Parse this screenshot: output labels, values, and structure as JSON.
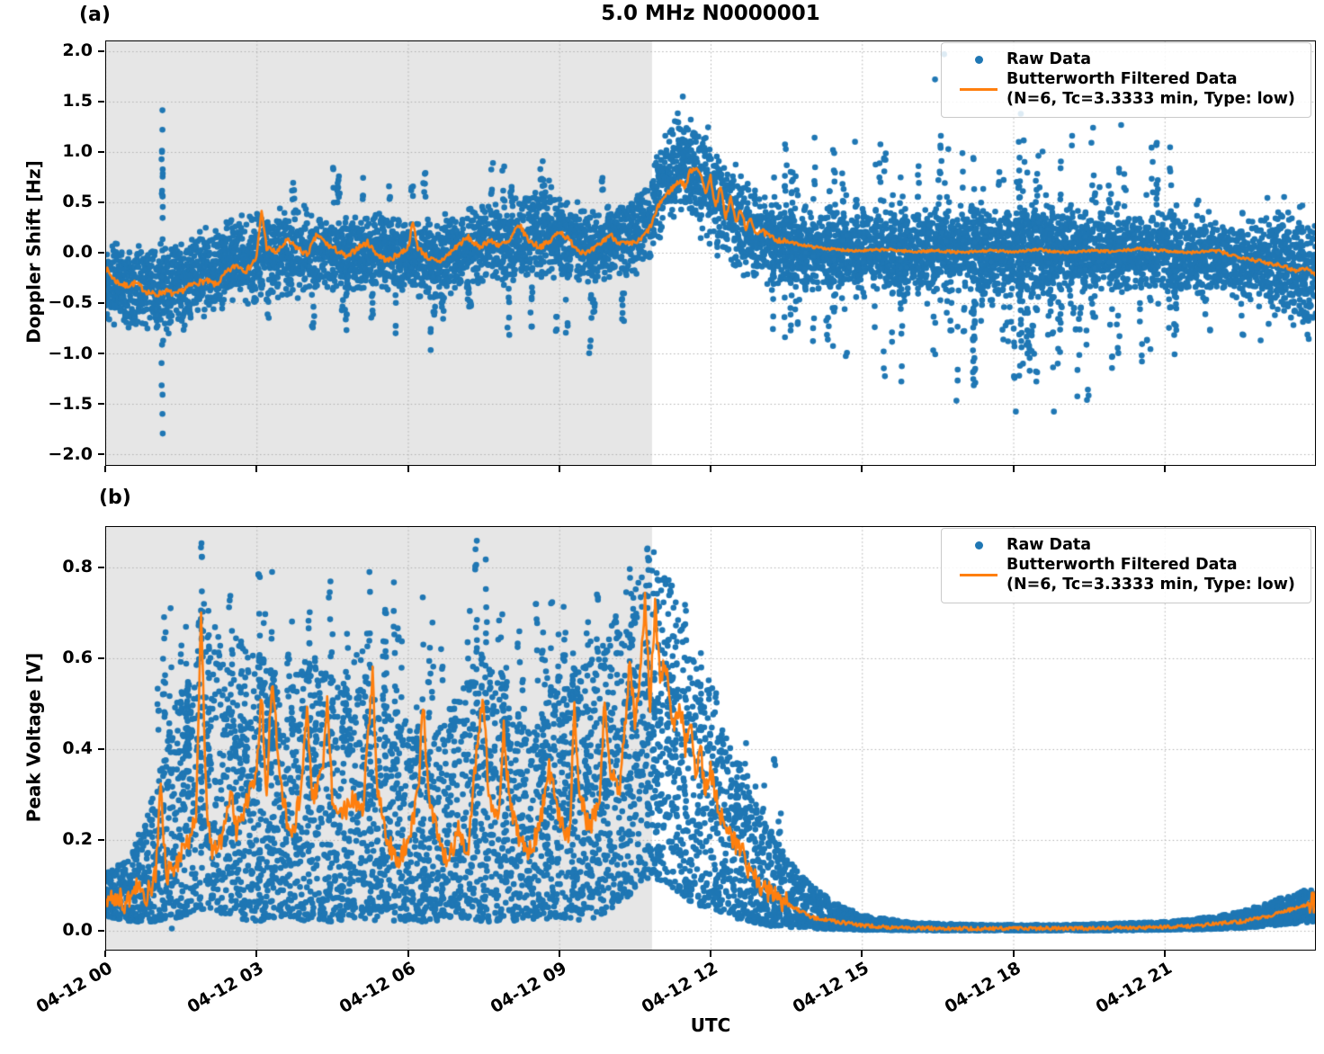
{
  "figure": {
    "title": "5.0 MHz N0000001",
    "xlabel": "UTC",
    "panel_a_tag": "(a)",
    "panel_b_tag": "(b)",
    "legend": {
      "raw_label": "Raw Data",
      "filtered_label_line1": "Butterworth Filtered Data",
      "filtered_label_line2": "(N=6, Tc=3.3333 min, Type: low)"
    },
    "colors": {
      "raw_scatter": "#1f77b4",
      "filtered_line": "#ff7f0e",
      "shaded_region": "#e6e6e6",
      "grid": "#b0b0b0",
      "axis": "#000000"
    }
  },
  "chart_data": [
    {
      "type": "scatter",
      "panel": "a",
      "ylabel": "Doppler Shift [Hz]",
      "ylim": [
        -2.116,
        2.107
      ],
      "yticks": [
        2.0,
        1.5,
        1.0,
        0.5,
        0.0,
        -0.5,
        -1.0,
        -1.5,
        -2.0
      ],
      "ytick_labels": [
        "2.0",
        "1.5",
        "1.0",
        "0.5",
        "0.0",
        "−0.5",
        "−1.0",
        "−1.5",
        "−2.0"
      ],
      "x_range_hours": [
        0,
        24
      ],
      "xticks_hours": [
        0,
        3,
        6,
        9,
        12,
        15,
        18,
        21
      ],
      "xtick_labels": [
        "04-12 00",
        "04-12 03",
        "04-12 06",
        "04-12 09",
        "04-12 12",
        "04-12 15",
        "04-12 18",
        "04-12 21"
      ],
      "shade_hours": [
        0,
        10.84
      ],
      "grid": "dotted",
      "legend_entries": [
        "Raw Data",
        "Butterworth Filtered Data (N=6, Tc=3.3333 min, Type: low)"
      ],
      "raw_band": {
        "t": [
          0,
          0.5,
          1,
          1.5,
          2,
          2.5,
          3,
          3.5,
          4,
          4.5,
          5,
          5.5,
          6,
          6.5,
          7,
          7.5,
          8,
          8.5,
          9,
          9.5,
          10,
          10.5,
          10.8,
          11.1,
          11.4,
          11.7,
          12,
          12.3,
          12.6,
          13,
          13.5,
          14,
          15,
          16,
          17,
          18,
          19,
          20,
          21,
          22,
          23,
          23.5,
          24
        ],
        "lo": [
          -0.75,
          -0.8,
          -0.85,
          -0.8,
          -0.7,
          -0.55,
          -0.5,
          -0.5,
          -0.45,
          -0.4,
          -0.45,
          -0.4,
          -0.45,
          -0.5,
          -0.4,
          -0.35,
          -0.35,
          -0.3,
          -0.3,
          -0.35,
          -0.3,
          -0.25,
          -0.1,
          0.2,
          0.3,
          0.2,
          0.0,
          -0.15,
          -0.25,
          -0.3,
          -0.35,
          -0.4,
          -0.4,
          -0.4,
          -0.45,
          -0.45,
          -0.4,
          -0.4,
          -0.4,
          -0.45,
          -0.55,
          -0.7,
          -0.95
        ],
        "hi": [
          0.2,
          0.15,
          0.15,
          0.2,
          0.3,
          0.35,
          0.45,
          0.45,
          0.5,
          0.45,
          0.4,
          0.45,
          0.4,
          0.35,
          0.45,
          0.5,
          0.55,
          0.65,
          0.6,
          0.5,
          0.5,
          0.55,
          0.8,
          1.25,
          1.45,
          1.35,
          1.25,
          1.05,
          0.8,
          0.6,
          0.5,
          0.45,
          0.4,
          0.45,
          0.5,
          0.5,
          0.45,
          0.45,
          0.4,
          0.35,
          0.35,
          0.4,
          0.45
        ]
      },
      "raw_spikes": [
        [
          1.13,
          -1.85,
          1.45,
          26
        ]
      ],
      "raw_bursts": [
        {
          "t0": 0.15,
          "t1": 10.6,
          "count": 26,
          "lo": [
            -1.05,
            -0.55
          ],
          "hi": [
            -0.5,
            -0.25
          ],
          "n": [
            3,
            8
          ]
        },
        {
          "t0": 3.0,
          "t1": 10.7,
          "count": 16,
          "lo": [
            0.45,
            0.55
          ],
          "hi": [
            0.6,
            0.95
          ],
          "n": [
            3,
            7
          ]
        },
        {
          "t0": 13.2,
          "t1": 21.3,
          "count": 95,
          "lo": [
            -1.35,
            -0.3
          ],
          "hi": [
            0.3,
            1.3
          ],
          "n": [
            4,
            13
          ]
        },
        {
          "t0": 16.8,
          "t1": 19.5,
          "count": 12,
          "lo": [
            -1.6,
            -1.2
          ],
          "hi": [
            -0.6,
            -0.3
          ],
          "n": [
            3,
            7
          ]
        },
        {
          "t0": 21.3,
          "t1": 23.9,
          "count": 20,
          "lo": [
            -1.0,
            -0.5
          ],
          "hi": [
            0.3,
            0.7
          ],
          "n": [
            3,
            7
          ]
        }
      ],
      "extra_points": [
        [
          16.63,
          1.97
        ],
        [
          16.45,
          1.72
        ],
        [
          11.45,
          1.55
        ],
        [
          18.15,
          1.38
        ]
      ],
      "filtered": {
        "t": [
          0,
          0.2,
          0.4,
          0.6,
          0.8,
          1.0,
          1.2,
          1.4,
          1.6,
          1.8,
          2.0,
          2.2,
          2.4,
          2.6,
          2.8,
          3.0,
          3.1,
          3.2,
          3.4,
          3.6,
          3.8,
          4.0,
          4.2,
          4.4,
          4.6,
          4.8,
          5.0,
          5.2,
          5.4,
          5.6,
          5.8,
          6.0,
          6.1,
          6.2,
          6.4,
          6.6,
          6.8,
          7.0,
          7.2,
          7.4,
          7.6,
          7.8,
          8.0,
          8.2,
          8.4,
          8.6,
          8.8,
          9.0,
          9.2,
          9.4,
          9.6,
          9.8,
          10.0,
          10.2,
          10.4,
          10.6,
          10.8,
          11.0,
          11.2,
          11.4,
          11.5,
          11.6,
          11.75,
          11.9,
          12.0,
          12.1,
          12.2,
          12.3,
          12.4,
          12.5,
          12.6,
          12.7,
          12.8,
          12.9,
          13.0,
          13.2,
          13.4,
          13.6,
          13.8,
          14.0,
          14.5,
          15.0,
          15.5,
          16.0,
          16.5,
          17.0,
          17.5,
          18.0,
          18.5,
          19.0,
          19.5,
          20.0,
          20.5,
          21.0,
          21.5,
          22.0,
          22.3,
          22.6,
          23.0,
          23.3,
          23.6,
          23.8,
          24.0
        ],
        "y": [
          -0.15,
          -0.28,
          -0.33,
          -0.3,
          -0.38,
          -0.42,
          -0.38,
          -0.42,
          -0.35,
          -0.3,
          -0.28,
          -0.32,
          -0.2,
          -0.12,
          -0.18,
          -0.05,
          0.42,
          0.05,
          0.0,
          0.12,
          0.05,
          -0.02,
          0.18,
          0.08,
          0.02,
          -0.05,
          0.05,
          0.1,
          -0.02,
          -0.08,
          -0.02,
          0.05,
          0.3,
          0.05,
          -0.05,
          -0.1,
          -0.02,
          0.08,
          0.15,
          0.05,
          0.12,
          0.08,
          0.1,
          0.28,
          0.12,
          0.06,
          0.1,
          0.22,
          0.12,
          0.02,
          0.0,
          0.08,
          0.18,
          0.1,
          0.08,
          0.12,
          0.25,
          0.5,
          0.62,
          0.72,
          0.65,
          0.82,
          0.85,
          0.6,
          0.75,
          0.45,
          0.65,
          0.35,
          0.55,
          0.3,
          0.42,
          0.25,
          0.32,
          0.2,
          0.22,
          0.15,
          0.12,
          0.1,
          0.08,
          0.06,
          0.03,
          0.02,
          0.03,
          0.01,
          0.02,
          0.0,
          0.02,
          0.01,
          0.03,
          0.0,
          0.02,
          0.01,
          0.04,
          0.02,
          0.0,
          0.02,
          -0.02,
          -0.05,
          -0.1,
          -0.12,
          -0.18,
          -0.15,
          -0.22
        ]
      }
    },
    {
      "type": "scatter",
      "panel": "b",
      "ylabel": "Peak Voltage [V]",
      "ylim": [
        -0.0436,
        0.891
      ],
      "yticks": [
        0.8,
        0.6,
        0.4,
        0.2,
        0.0
      ],
      "ytick_labels": [
        "0.8",
        "0.6",
        "0.4",
        "0.2",
        "0.0"
      ],
      "x_range_hours": [
        0,
        24
      ],
      "xticks_hours": [
        0,
        3,
        6,
        9,
        12,
        15,
        18,
        21
      ],
      "xtick_labels": [
        "04-12 00",
        "04-12 03",
        "04-12 06",
        "04-12 09",
        "04-12 12",
        "04-12 15",
        "04-12 18",
        "04-12 21"
      ],
      "shade_hours": [
        0,
        10.84
      ],
      "grid": "dotted",
      "legend_entries": [
        "Raw Data",
        "Butterworth Filtered Data (N=6, Tc=3.3333 min, Type: low)"
      ],
      "raw_band": {
        "t": [
          0,
          0.5,
          1,
          1.5,
          2,
          2.5,
          3,
          3.5,
          4,
          4.5,
          5,
          5.5,
          6,
          6.5,
          7,
          7.5,
          8,
          8.5,
          9,
          9.5,
          10,
          10.4,
          10.8,
          11.2,
          11.6,
          12,
          12.4,
          12.8,
          13.2,
          13.6,
          14,
          14.5,
          15,
          16,
          17,
          18,
          19,
          20,
          21,
          21.5,
          22,
          22.5,
          23,
          23.5,
          24
        ],
        "lo": [
          0.03,
          0.02,
          0.02,
          0.03,
          0.05,
          0.03,
          0.02,
          0.03,
          0.02,
          0.02,
          0.03,
          0.02,
          0.02,
          0.02,
          0.03,
          0.02,
          0.02,
          0.02,
          0.03,
          0.02,
          0.04,
          0.08,
          0.12,
          0.1,
          0.06,
          0.05,
          0.03,
          0.02,
          0.01,
          0.008,
          0.005,
          0.003,
          0.002,
          0.001,
          0.001,
          0.001,
          0.001,
          0.001,
          0.002,
          0.003,
          0.004,
          0.006,
          0.01,
          0.015,
          0.02
        ],
        "hi": [
          0.13,
          0.16,
          0.32,
          0.55,
          0.75,
          0.55,
          0.62,
          0.55,
          0.6,
          0.56,
          0.62,
          0.5,
          0.46,
          0.42,
          0.52,
          0.62,
          0.5,
          0.46,
          0.56,
          0.6,
          0.66,
          0.78,
          0.85,
          0.78,
          0.62,
          0.55,
          0.42,
          0.3,
          0.22,
          0.15,
          0.1,
          0.06,
          0.035,
          0.018,
          0.014,
          0.013,
          0.013,
          0.016,
          0.02,
          0.025,
          0.032,
          0.042,
          0.06,
          0.08,
          0.1
        ]
      },
      "raw_spikes": [
        [
          1.9,
          0.1,
          0.87,
          22
        ],
        [
          2.05,
          0.1,
          0.8,
          16
        ],
        [
          3.05,
          0.1,
          0.87,
          20
        ],
        [
          3.3,
          0.1,
          0.82,
          18
        ],
        [
          4.05,
          0.08,
          0.8,
          16
        ],
        [
          4.45,
          0.08,
          0.8,
          16
        ],
        [
          5.25,
          0.08,
          0.82,
          18
        ],
        [
          5.55,
          0.08,
          0.74,
          12
        ],
        [
          6.3,
          0.06,
          0.74,
          14
        ],
        [
          7.35,
          0.08,
          0.87,
          20
        ],
        [
          7.55,
          0.08,
          0.85,
          16
        ],
        [
          7.95,
          0.06,
          0.74,
          12
        ],
        [
          8.75,
          0.06,
          0.64,
          10
        ],
        [
          9.25,
          0.08,
          0.74,
          14
        ],
        [
          9.9,
          0.08,
          0.7,
          12
        ],
        [
          10.4,
          0.1,
          0.8,
          16
        ],
        [
          10.75,
          0.12,
          0.86,
          20
        ],
        [
          10.95,
          0.12,
          0.84,
          18
        ],
        [
          11.5,
          0.06,
          0.72,
          14
        ],
        [
          11.8,
          0.05,
          0.62,
          10
        ],
        [
          12.1,
          0.04,
          0.56,
          10
        ]
      ],
      "raw_bursts": [
        {
          "t0": 0.9,
          "t1": 11.4,
          "count": 90,
          "lo": [
            0.25,
            0.45
          ],
          "hi": [
            0.5,
            0.78
          ],
          "n": [
            4,
            10
          ]
        },
        {
          "t0": 12.2,
          "t1": 13.4,
          "count": 10,
          "lo": [
            0.1,
            0.2
          ],
          "hi": [
            0.25,
            0.45
          ],
          "n": [
            3,
            6
          ]
        }
      ],
      "extra_points": [
        [
          1.32,
          0.005
        ]
      ],
      "filtered": {
        "t": [
          0,
          0.2,
          0.4,
          0.6,
          0.8,
          1.0,
          1.1,
          1.2,
          1.4,
          1.6,
          1.8,
          1.9,
          2.0,
          2.1,
          2.3,
          2.5,
          2.6,
          2.8,
          3.0,
          3.1,
          3.2,
          3.3,
          3.5,
          3.7,
          3.9,
          4.0,
          4.1,
          4.3,
          4.4,
          4.5,
          4.7,
          4.9,
          5.1,
          5.3,
          5.4,
          5.6,
          5.8,
          6.0,
          6.2,
          6.3,
          6.4,
          6.6,
          6.8,
          7.0,
          7.2,
          7.4,
          7.5,
          7.6,
          7.8,
          7.9,
          8.0,
          8.2,
          8.4,
          8.6,
          8.8,
          9.0,
          9.2,
          9.3,
          9.4,
          9.6,
          9.8,
          9.9,
          10.0,
          10.2,
          10.4,
          10.5,
          10.6,
          10.7,
          10.8,
          10.9,
          11.0,
          11.1,
          11.2,
          11.3,
          11.4,
          11.5,
          11.6,
          11.7,
          11.8,
          11.9,
          12.0,
          12.2,
          12.4,
          12.6,
          12.8,
          13.0,
          13.2,
          13.5,
          14.0,
          14.5,
          15.0,
          15.5,
          16.0,
          17.0,
          18.0,
          19.0,
          20.0,
          21.0,
          21.5,
          22.0,
          22.5,
          23.0,
          23.3,
          23.6,
          24.0
        ],
        "y": [
          0.06,
          0.08,
          0.06,
          0.1,
          0.07,
          0.12,
          0.34,
          0.12,
          0.15,
          0.18,
          0.25,
          0.7,
          0.3,
          0.18,
          0.2,
          0.32,
          0.22,
          0.28,
          0.35,
          0.52,
          0.3,
          0.56,
          0.3,
          0.2,
          0.32,
          0.5,
          0.28,
          0.35,
          0.5,
          0.3,
          0.25,
          0.3,
          0.25,
          0.57,
          0.3,
          0.2,
          0.15,
          0.2,
          0.3,
          0.5,
          0.3,
          0.2,
          0.15,
          0.22,
          0.18,
          0.45,
          0.5,
          0.3,
          0.25,
          0.44,
          0.3,
          0.2,
          0.18,
          0.22,
          0.36,
          0.25,
          0.2,
          0.5,
          0.3,
          0.22,
          0.3,
          0.5,
          0.35,
          0.3,
          0.6,
          0.45,
          0.55,
          0.73,
          0.5,
          0.72,
          0.55,
          0.6,
          0.5,
          0.45,
          0.5,
          0.4,
          0.45,
          0.35,
          0.4,
          0.3,
          0.35,
          0.25,
          0.2,
          0.18,
          0.12,
          0.1,
          0.08,
          0.06,
          0.03,
          0.02,
          0.012,
          0.008,
          0.006,
          0.005,
          0.005,
          0.005,
          0.006,
          0.008,
          0.01,
          0.015,
          0.02,
          0.03,
          0.04,
          0.05,
          0.065
        ]
      }
    }
  ]
}
